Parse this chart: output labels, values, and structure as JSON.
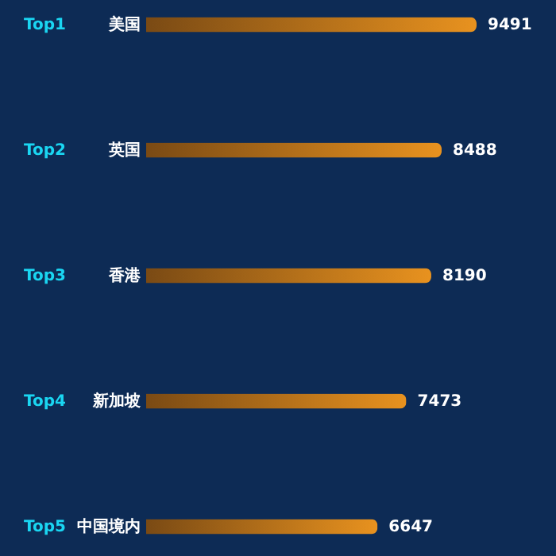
{
  "chart_data": {
    "type": "bar",
    "orientation": "horizontal",
    "categories": [
      "美国",
      "英国",
      "香港",
      "新加坡",
      "中国境内"
    ],
    "values": [
      9491,
      8488,
      8190,
      7473,
      6647
    ],
    "color": "#e8921f",
    "data_labels": true,
    "annotations": [
      "Top1",
      "Top2",
      "Top3",
      "Top4",
      "Top5"
    ]
  }
}
